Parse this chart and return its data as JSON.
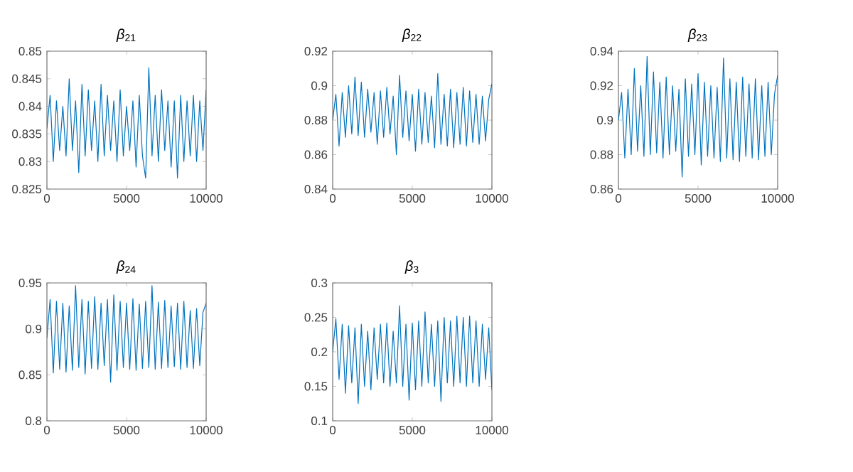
{
  "chart_data": [
    {
      "type": "line",
      "title": "*β*$_{21}$",
      "color": "#0072bd",
      "xlim": [
        0,
        10000
      ],
      "xticks": [
        0,
        5000,
        10000
      ],
      "ylim": [
        0.825,
        0.85
      ],
      "yticks": [
        0.825,
        0.83,
        0.835,
        0.84,
        0.845,
        0.85
      ],
      "x": [
        0,
        200,
        400,
        600,
        800,
        1000,
        1200,
        1400,
        1600,
        1800,
        2000,
        2200,
        2400,
        2600,
        2800,
        3000,
        3200,
        3400,
        3600,
        3800,
        4000,
        4200,
        4400,
        4600,
        4800,
        5000,
        5200,
        5400,
        5600,
        5800,
        6000,
        6200,
        6400,
        6600,
        6800,
        7000,
        7200,
        7400,
        7600,
        7800,
        8000,
        8200,
        8400,
        8600,
        8800,
        9000,
        9200,
        9400,
        9600,
        9800,
        10000
      ],
      "values": [
        0.836,
        0.842,
        0.83,
        0.841,
        0.832,
        0.84,
        0.831,
        0.845,
        0.832,
        0.841,
        0.828,
        0.844,
        0.831,
        0.843,
        0.832,
        0.841,
        0.83,
        0.844,
        0.831,
        0.842,
        0.832,
        0.841,
        0.83,
        0.843,
        0.831,
        0.84,
        0.832,
        0.841,
        0.829,
        0.842,
        0.831,
        0.827,
        0.847,
        0.831,
        0.842,
        0.83,
        0.843,
        0.832,
        0.841,
        0.829,
        0.841,
        0.827,
        0.842,
        0.83,
        0.841,
        0.831,
        0.842,
        0.83,
        0.841,
        0.832,
        0.843
      ]
    },
    {
      "type": "line",
      "title": "*β*$_{22}$",
      "color": "#0072bd",
      "xlim": [
        0,
        10000
      ],
      "xticks": [
        0,
        5000,
        10000
      ],
      "ylim": [
        0.84,
        0.92
      ],
      "yticks": [
        0.84,
        0.86,
        0.88,
        0.9,
        0.92
      ],
      "x": [
        0,
        200,
        400,
        600,
        800,
        1000,
        1200,
        1400,
        1600,
        1800,
        2000,
        2200,
        2400,
        2600,
        2800,
        3000,
        3200,
        3400,
        3600,
        3800,
        4000,
        4200,
        4400,
        4600,
        4800,
        5000,
        5200,
        5400,
        5600,
        5800,
        6000,
        6200,
        6400,
        6600,
        6800,
        7000,
        7200,
        7400,
        7600,
        7800,
        8000,
        8200,
        8400,
        8600,
        8800,
        9000,
        9200,
        9400,
        9600,
        9800,
        10000
      ],
      "values": [
        0.88,
        0.895,
        0.865,
        0.896,
        0.87,
        0.9,
        0.872,
        0.905,
        0.871,
        0.902,
        0.87,
        0.898,
        0.873,
        0.896,
        0.866,
        0.897,
        0.87,
        0.899,
        0.872,
        0.894,
        0.86,
        0.906,
        0.87,
        0.897,
        0.868,
        0.895,
        0.862,
        0.898,
        0.866,
        0.896,
        0.867,
        0.894,
        0.864,
        0.907,
        0.866,
        0.895,
        0.865,
        0.898,
        0.864,
        0.896,
        0.866,
        0.899,
        0.865,
        0.897,
        0.867,
        0.895,
        0.866,
        0.894,
        0.868,
        0.892,
        0.901
      ]
    },
    {
      "type": "line",
      "title": "*β*$_{23}$",
      "color": "#0072bd",
      "xlim": [
        0,
        10000
      ],
      "xticks": [
        0,
        5000,
        10000
      ],
      "ylim": [
        0.86,
        0.94
      ],
      "yticks": [
        0.86,
        0.88,
        0.9,
        0.92,
        0.94
      ],
      "x": [
        0,
        200,
        400,
        600,
        800,
        1000,
        1200,
        1400,
        1600,
        1800,
        2000,
        2200,
        2400,
        2600,
        2800,
        3000,
        3200,
        3400,
        3600,
        3800,
        4000,
        4200,
        4400,
        4600,
        4800,
        5000,
        5200,
        5400,
        5600,
        5800,
        6000,
        6200,
        6400,
        6600,
        6800,
        7000,
        7200,
        7400,
        7600,
        7800,
        8000,
        8200,
        8400,
        8600,
        8800,
        9000,
        9200,
        9400,
        9600,
        9800,
        10000
      ],
      "values": [
        0.9,
        0.916,
        0.878,
        0.918,
        0.88,
        0.93,
        0.882,
        0.92,
        0.879,
        0.937,
        0.88,
        0.928,
        0.881,
        0.922,
        0.878,
        0.925,
        0.88,
        0.92,
        0.882,
        0.918,
        0.867,
        0.924,
        0.879,
        0.921,
        0.88,
        0.927,
        0.874,
        0.922,
        0.879,
        0.92,
        0.878,
        0.919,
        0.876,
        0.936,
        0.878,
        0.924,
        0.877,
        0.922,
        0.876,
        0.925,
        0.879,
        0.921,
        0.878,
        0.924,
        0.877,
        0.92,
        0.879,
        0.922,
        0.88,
        0.915,
        0.926
      ]
    },
    {
      "type": "line",
      "title": "*β*$_{24}$",
      "color": "#0072bd",
      "xlim": [
        0,
        10000
      ],
      "xticks": [
        0,
        5000,
        10000
      ],
      "ylim": [
        0.8,
        0.95
      ],
      "yticks": [
        0.8,
        0.85,
        0.9,
        0.95
      ],
      "x": [
        0,
        200,
        400,
        600,
        800,
        1000,
        1200,
        1400,
        1600,
        1800,
        2000,
        2200,
        2400,
        2600,
        2800,
        3000,
        3200,
        3400,
        3600,
        3800,
        4000,
        4200,
        4400,
        4600,
        4800,
        5000,
        5200,
        5400,
        5600,
        5800,
        6000,
        6200,
        6400,
        6600,
        6800,
        7000,
        7200,
        7400,
        7600,
        7800,
        8000,
        8200,
        8400,
        8600,
        8800,
        9000,
        9200,
        9400,
        9600,
        9800,
        10000
      ],
      "values": [
        0.89,
        0.932,
        0.852,
        0.93,
        0.856,
        0.928,
        0.853,
        0.925,
        0.855,
        0.947,
        0.858,
        0.932,
        0.851,
        0.93,
        0.857,
        0.935,
        0.856,
        0.928,
        0.86,
        0.932,
        0.842,
        0.937,
        0.855,
        0.93,
        0.858,
        0.928,
        0.856,
        0.933,
        0.855,
        0.927,
        0.857,
        0.93,
        0.858,
        0.947,
        0.856,
        0.929,
        0.857,
        0.931,
        0.858,
        0.925,
        0.859,
        0.928,
        0.856,
        0.93,
        0.858,
        0.92,
        0.857,
        0.922,
        0.86,
        0.918,
        0.928
      ]
    },
    {
      "type": "line",
      "title": "*β*$_{3}$",
      "color": "#0072bd",
      "xlim": [
        0,
        10000
      ],
      "xticks": [
        0,
        5000,
        10000
      ],
      "ylim": [
        0.1,
        0.3
      ],
      "yticks": [
        0.1,
        0.15,
        0.2,
        0.25,
        0.3
      ],
      "x": [
        0,
        200,
        400,
        600,
        800,
        1000,
        1200,
        1400,
        1600,
        1800,
        2000,
        2200,
        2400,
        2600,
        2800,
        3000,
        3200,
        3400,
        3600,
        3800,
        4000,
        4200,
        4400,
        4600,
        4800,
        5000,
        5200,
        5400,
        5600,
        5800,
        6000,
        6200,
        6400,
        6600,
        6800,
        7000,
        7200,
        7400,
        7600,
        7800,
        8000,
        8200,
        8400,
        8600,
        8800,
        9000,
        9200,
        9400,
        9600,
        9800,
        10000
      ],
      "values": [
        0.2,
        0.248,
        0.16,
        0.24,
        0.14,
        0.238,
        0.155,
        0.235,
        0.125,
        0.24,
        0.15,
        0.23,
        0.145,
        0.235,
        0.16,
        0.24,
        0.155,
        0.242,
        0.15,
        0.23,
        0.155,
        0.267,
        0.15,
        0.24,
        0.13,
        0.242,
        0.145,
        0.245,
        0.15,
        0.258,
        0.155,
        0.24,
        0.15,
        0.245,
        0.128,
        0.25,
        0.155,
        0.245,
        0.15,
        0.252,
        0.155,
        0.25,
        0.15,
        0.252,
        0.155,
        0.245,
        0.15,
        0.24,
        0.16,
        0.235,
        0.145
      ]
    }
  ]
}
